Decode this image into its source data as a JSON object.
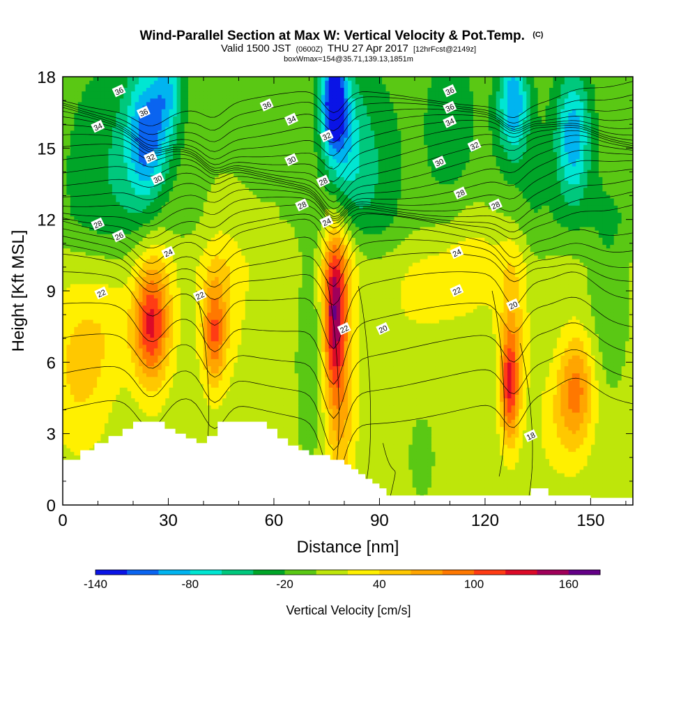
{
  "chart_data": {
    "type": "contour",
    "title": "Wind-Parallel Section at Max W: Vertical Velocity & Pot.Temp.",
    "title_mark": "(C)",
    "subtitle_parts": {
      "valid_prefix": "Valid 1500 JST",
      "zulu": "(0600Z)",
      "date": "THU 27 Apr 2017",
      "forecast": "[12hrFcst@2149z]"
    },
    "box_line": "boxWmax=154@35.71,139.13,1851m",
    "xlabel": "Distance [nm]",
    "ylabel": "Height [Kft MSL]",
    "xlim": [
      0,
      162
    ],
    "ylim": [
      0,
      18
    ],
    "x_ticks": [
      0,
      30,
      60,
      90,
      120,
      150
    ],
    "y_ticks": [
      0,
      3,
      6,
      9,
      12,
      15,
      18
    ],
    "colorbar": {
      "label": "Vertical Velocity [cm/s]",
      "levels": [
        -140,
        -120,
        -100,
        -80,
        -60,
        -40,
        -20,
        0,
        20,
        40,
        60,
        80,
        100,
        120,
        140,
        160,
        180
      ],
      "tick_labels": [
        -140,
        -80,
        -20,
        40,
        100,
        160
      ],
      "colors": [
        "#0a14e6",
        "#0a64f0",
        "#00b4f0",
        "#00e6d2",
        "#00c87d",
        "#00a528",
        "#5ac814",
        "#bee60a",
        "#fff000",
        "#ffc800",
        "#ffa500",
        "#ff7800",
        "#ff3c14",
        "#dc0a28",
        "#a0005a",
        "#640087"
      ]
    },
    "theta_labels": [
      {
        "x": 16,
        "y": 17.4,
        "t": "36"
      },
      {
        "x": 23,
        "y": 16.5,
        "t": "36"
      },
      {
        "x": 10,
        "y": 15.9,
        "t": "34"
      },
      {
        "x": 25,
        "y": 14.6,
        "t": "32"
      },
      {
        "x": 27,
        "y": 13.7,
        "t": "30"
      },
      {
        "x": 10,
        "y": 11.8,
        "t": "28"
      },
      {
        "x": 16,
        "y": 11.3,
        "t": "26"
      },
      {
        "x": 30,
        "y": 10.6,
        "t": "24"
      },
      {
        "x": 11,
        "y": 8.9,
        "t": "22"
      },
      {
        "x": 39,
        "y": 8.8,
        "t": "22"
      },
      {
        "x": 58,
        "y": 16.8,
        "t": "36"
      },
      {
        "x": 65,
        "y": 16.2,
        "t": "34"
      },
      {
        "x": 75,
        "y": 15.5,
        "t": "32"
      },
      {
        "x": 65,
        "y": 14.5,
        "t": "30"
      },
      {
        "x": 74,
        "y": 13.6,
        "t": "28"
      },
      {
        "x": 68,
        "y": 12.6,
        "t": "28"
      },
      {
        "x": 75,
        "y": 11.9,
        "t": "24"
      },
      {
        "x": 80,
        "y": 7.4,
        "t": "22"
      },
      {
        "x": 91,
        "y": 7.4,
        "t": "20"
      },
      {
        "x": 110,
        "y": 17.4,
        "t": "36"
      },
      {
        "x": 110,
        "y": 16.7,
        "t": "36"
      },
      {
        "x": 110,
        "y": 16.1,
        "t": "34"
      },
      {
        "x": 117,
        "y": 15.1,
        "t": "32"
      },
      {
        "x": 107,
        "y": 14.4,
        "t": "30"
      },
      {
        "x": 113,
        "y": 13.1,
        "t": "28"
      },
      {
        "x": 123,
        "y": 12.6,
        "t": "28"
      },
      {
        "x": 112,
        "y": 10.6,
        "t": "24"
      },
      {
        "x": 112,
        "y": 9.0,
        "t": "22"
      },
      {
        "x": 128,
        "y": 8.4,
        "t": "20"
      },
      {
        "x": 133,
        "y": 2.9,
        "t": "18"
      }
    ]
  }
}
